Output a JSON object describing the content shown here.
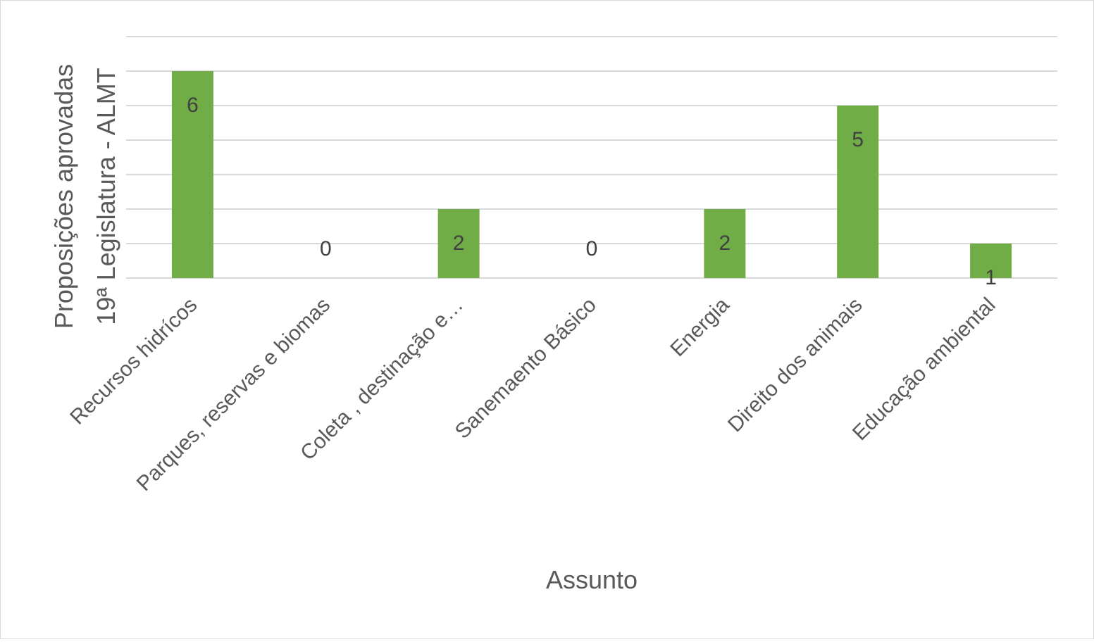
{
  "chart_data": {
    "type": "bar",
    "title": "",
    "xlabel": "Assunto",
    "ylabel_lines": [
      "Proposições aprovadas",
      "19ª Legislatura - ALMT"
    ],
    "categories": [
      "Recursos hidrícos",
      "Parques, reservas e biomas",
      "Coleta , destinação e…",
      "Sanemaento Básico",
      "Energia",
      "Direito dos animais",
      "Educação ambiental"
    ],
    "values": [
      6,
      0,
      2,
      0,
      2,
      5,
      1
    ],
    "ylim": [
      0,
      7
    ],
    "y_tick_step": 1,
    "y_tick_labels_shown": false,
    "grid": true,
    "legend": "none",
    "data_labels": true,
    "colors": {
      "bar": "#70ad47",
      "grid": "#d9d9d9",
      "text": "#595959",
      "data_label": "#404040"
    }
  }
}
